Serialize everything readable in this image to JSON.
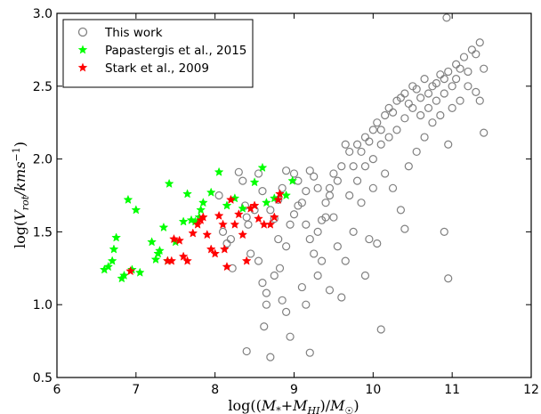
{
  "chart_data": {
    "type": "scatter",
    "xlabel": "log((M_*+M_HI)/M_☉)",
    "ylabel": "log(V_rot/kms^-1)",
    "xlim": [
      6,
      12
    ],
    "ylim": [
      0.5,
      3.0
    ],
    "xticks": [
      6,
      7,
      8,
      9,
      10,
      11,
      12
    ],
    "yticks": [
      0.5,
      1.0,
      1.5,
      2.0,
      2.5,
      3.0
    ],
    "xtick_labels": [
      "6",
      "7",
      "8",
      "9",
      "10",
      "11",
      "12"
    ],
    "ytick_labels": [
      "0.5",
      "1.0",
      "1.5",
      "2.0",
      "2.5",
      "3.0"
    ],
    "grid": false,
    "legend_position": "top-left",
    "series": [
      {
        "name": "This work",
        "marker": "open-circle",
        "color": "#808080",
        "points": [
          [
            8.05,
            1.75
          ],
          [
            8.1,
            1.5
          ],
          [
            8.15,
            1.42
          ],
          [
            8.2,
            1.45
          ],
          [
            8.22,
            1.25
          ],
          [
            8.3,
            1.91
          ],
          [
            8.35,
            1.85
          ],
          [
            8.38,
            1.68
          ],
          [
            8.4,
            1.6
          ],
          [
            8.42,
            1.55
          ],
          [
            8.45,
            1.35
          ],
          [
            8.5,
            1.65
          ],
          [
            8.55,
            1.3
          ],
          [
            8.6,
            1.15
          ],
          [
            8.62,
            0.85
          ],
          [
            8.65,
            1.08
          ],
          [
            8.7,
            0.64
          ],
          [
            8.75,
            1.59
          ],
          [
            8.8,
            1.45
          ],
          [
            8.82,
            1.25
          ],
          [
            8.85,
            1.03
          ],
          [
            8.9,
            0.95
          ],
          [
            8.95,
            0.78
          ],
          [
            8.4,
            0.68
          ],
          [
            8.55,
            1.9
          ],
          [
            8.6,
            1.78
          ],
          [
            8.7,
            1.65
          ],
          [
            8.8,
            1.72
          ],
          [
            8.85,
            1.8
          ],
          [
            8.9,
            1.92
          ],
          [
            9.0,
            1.9
          ],
          [
            9.05,
            1.85
          ],
          [
            9.1,
            1.7
          ],
          [
            9.15,
            1.55
          ],
          [
            9.2,
            1.45
          ],
          [
            9.25,
            1.35
          ],
          [
            9.3,
            1.2
          ],
          [
            9.1,
            1.12
          ],
          [
            9.15,
            1.0
          ],
          [
            9.2,
            0.67
          ],
          [
            9.35,
            1.58
          ],
          [
            9.4,
            1.7
          ],
          [
            9.45,
            1.8
          ],
          [
            9.5,
            1.9
          ],
          [
            9.55,
            1.85
          ],
          [
            9.6,
            1.95
          ],
          [
            9.65,
            2.1
          ],
          [
            9.7,
            2.05
          ],
          [
            9.75,
            1.95
          ],
          [
            9.8,
            2.1
          ],
          [
            9.85,
            2.05
          ],
          [
            9.9,
            2.15
          ],
          [
            9.95,
            2.12
          ],
          [
            10.0,
            2.2
          ],
          [
            10.05,
            2.25
          ],
          [
            10.1,
            2.2
          ],
          [
            10.15,
            2.3
          ],
          [
            10.2,
            2.35
          ],
          [
            10.25,
            2.32
          ],
          [
            10.3,
            2.4
          ],
          [
            10.35,
            2.42
          ],
          [
            10.4,
            2.45
          ],
          [
            10.45,
            2.38
          ],
          [
            10.5,
            2.5
          ],
          [
            10.55,
            2.48
          ],
          [
            10.6,
            2.42
          ],
          [
            10.65,
            2.55
          ],
          [
            10.7,
            2.45
          ],
          [
            10.75,
            2.5
          ],
          [
            10.8,
            2.52
          ],
          [
            10.85,
            2.58
          ],
          [
            10.9,
            2.55
          ],
          [
            10.95,
            2.6
          ],
          [
            11.0,
            2.5
          ],
          [
            11.05,
            2.65
          ],
          [
            11.1,
            2.62
          ],
          [
            11.15,
            2.7
          ],
          [
            11.2,
            2.6
          ],
          [
            11.25,
            2.75
          ],
          [
            11.3,
            2.72
          ],
          [
            11.35,
            2.8
          ],
          [
            11.4,
            2.62
          ],
          [
            11.3,
            2.46
          ],
          [
            11.35,
            2.4
          ],
          [
            11.4,
            2.18
          ],
          [
            10.93,
            2.97
          ],
          [
            10.95,
            2.1
          ],
          [
            10.9,
            1.5
          ],
          [
            10.95,
            1.18
          ],
          [
            10.4,
            1.52
          ],
          [
            10.05,
            1.42
          ],
          [
            10.1,
            0.83
          ],
          [
            9.9,
            1.2
          ],
          [
            9.95,
            1.45
          ],
          [
            9.6,
            1.05
          ],
          [
            9.55,
            1.4
          ],
          [
            9.5,
            1.6
          ],
          [
            9.45,
            1.75
          ],
          [
            9.4,
            1.6
          ],
          [
            9.3,
            1.8
          ],
          [
            9.25,
            1.88
          ],
          [
            9.2,
            1.92
          ],
          [
            9.15,
            1.78
          ],
          [
            9.05,
            1.68
          ],
          [
            9.0,
            1.62
          ],
          [
            9.3,
            1.5
          ],
          [
            9.7,
            1.75
          ],
          [
            9.8,
            1.85
          ],
          [
            9.9,
            1.95
          ],
          [
            10.0,
            2.0
          ],
          [
            10.1,
            2.1
          ],
          [
            10.2,
            2.15
          ],
          [
            10.3,
            2.2
          ],
          [
            10.4,
            2.28
          ],
          [
            10.5,
            2.35
          ],
          [
            10.6,
            2.3
          ],
          [
            10.7,
            2.35
          ],
          [
            10.8,
            2.4
          ],
          [
            10.9,
            2.45
          ],
          [
            11.0,
            2.35
          ],
          [
            11.1,
            2.4
          ],
          [
            10.35,
            1.65
          ],
          [
            10.25,
            1.8
          ],
          [
            10.15,
            1.9
          ],
          [
            10.0,
            1.8
          ],
          [
            9.85,
            1.7
          ],
          [
            10.45,
            1.95
          ],
          [
            10.55,
            2.05
          ],
          [
            10.65,
            2.15
          ],
          [
            10.75,
            2.25
          ],
          [
            10.85,
            2.3
          ],
          [
            11.05,
            2.55
          ],
          [
            11.2,
            2.5
          ],
          [
            9.65,
            1.3
          ],
          [
            9.75,
            1.5
          ],
          [
            8.95,
            1.55
          ],
          [
            8.9,
            1.4
          ],
          [
            8.75,
            1.2
          ],
          [
            8.65,
            1.0
          ],
          [
            9.35,
            1.3
          ],
          [
            9.45,
            1.1
          ]
        ]
      },
      {
        "name": "Papastergis et al., 2015",
        "marker": "star",
        "color": "#00ff00",
        "points": [
          [
            6.6,
            1.24
          ],
          [
            6.65,
            1.26
          ],
          [
            6.7,
            1.3
          ],
          [
            6.72,
            1.38
          ],
          [
            6.75,
            1.46
          ],
          [
            6.82,
            1.18
          ],
          [
            6.85,
            1.2
          ],
          [
            6.9,
            1.72
          ],
          [
            6.95,
            1.24
          ],
          [
            7.0,
            1.65
          ],
          [
            7.05,
            1.22
          ],
          [
            7.2,
            1.43
          ],
          [
            7.25,
            1.31
          ],
          [
            7.28,
            1.35
          ],
          [
            7.3,
            1.37
          ],
          [
            7.35,
            1.53
          ],
          [
            7.4,
            1.3
          ],
          [
            7.42,
            1.83
          ],
          [
            7.5,
            1.43
          ],
          [
            7.6,
            1.57
          ],
          [
            7.65,
            1.76
          ],
          [
            7.7,
            1.58
          ],
          [
            7.75,
            1.57
          ],
          [
            7.8,
            1.6
          ],
          [
            7.82,
            1.65
          ],
          [
            7.85,
            1.7
          ],
          [
            7.95,
            1.77
          ],
          [
            8.05,
            1.91
          ],
          [
            8.15,
            1.68
          ],
          [
            8.25,
            1.73
          ],
          [
            8.35,
            1.66
          ],
          [
            8.5,
            1.84
          ],
          [
            8.6,
            1.94
          ],
          [
            8.65,
            1.7
          ],
          [
            8.75,
            1.73
          ],
          [
            8.9,
            1.75
          ],
          [
            8.98,
            1.85
          ]
        ]
      },
      {
        "name": "Stark et al., 2009",
        "marker": "star",
        "color": "#ff0000",
        "points": [
          [
            6.93,
            1.23
          ],
          [
            7.4,
            1.3
          ],
          [
            7.45,
            1.3
          ],
          [
            7.48,
            1.45
          ],
          [
            7.55,
            1.44
          ],
          [
            7.6,
            1.33
          ],
          [
            7.65,
            1.3
          ],
          [
            7.72,
            1.49
          ],
          [
            7.78,
            1.55
          ],
          [
            7.82,
            1.58
          ],
          [
            7.85,
            1.6
          ],
          [
            7.9,
            1.48
          ],
          [
            7.95,
            1.38
          ],
          [
            8.0,
            1.35
          ],
          [
            8.05,
            1.61
          ],
          [
            8.1,
            1.55
          ],
          [
            8.12,
            1.38
          ],
          [
            8.15,
            1.26
          ],
          [
            8.2,
            1.72
          ],
          [
            8.25,
            1.55
          ],
          [
            8.3,
            1.62
          ],
          [
            8.35,
            1.48
          ],
          [
            8.4,
            1.3
          ],
          [
            8.45,
            1.66
          ],
          [
            8.5,
            1.68
          ],
          [
            8.55,
            1.59
          ],
          [
            8.62,
            1.55
          ],
          [
            8.7,
            1.55
          ],
          [
            8.75,
            1.6
          ],
          [
            8.8,
            1.72
          ],
          [
            8.82,
            1.76
          ]
        ]
      }
    ]
  }
}
